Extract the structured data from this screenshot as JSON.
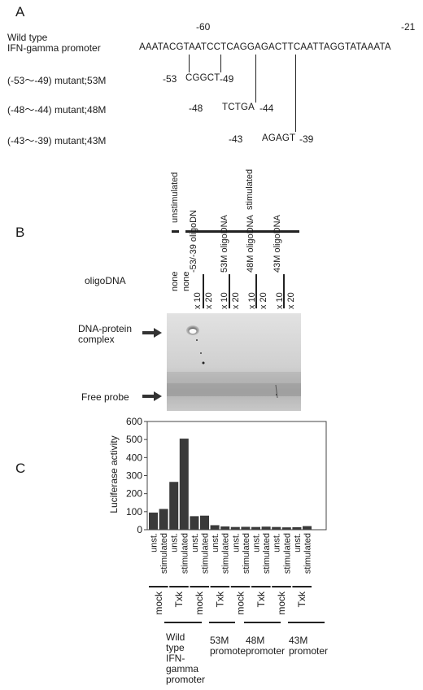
{
  "panelA": {
    "letter": "A",
    "pos_left": "-60",
    "pos_right": "-21",
    "wt_label_line1": "Wild type",
    "wt_label_line2": "IFN-gamma promoter",
    "wt_sequence": "AAATACGTAATCCTCAGGAGACTTCAATTAGGTATAAATA",
    "mutants": [
      {
        "label": "(-53～-49) mutant;53M",
        "start": "-53",
        "seq": "CGGCT",
        "end": "-49"
      },
      {
        "label": "(-48～-44) mutant;48M",
        "start": "-48",
        "seq": "TCTGA",
        "end": "-44"
      },
      {
        "label": "(-43～-39) mutant;43M",
        "start": "-43",
        "seq": "AGAGT",
        "end": "-39"
      }
    ]
  },
  "panelB": {
    "letter": "B",
    "unstimulated": "unstimulated",
    "stimulated": "stimulated",
    "oligo_header": "oligoDNA",
    "lane_none_1": "none",
    "lane_none_2": "none",
    "groups": [
      {
        "name": "-53/-39 oligoDN",
        "x10": "x 10",
        "x20": "x 20"
      },
      {
        "name": "53M oligoDNA",
        "x10": "x 10",
        "x20": "x 20"
      },
      {
        "name": "48M oligoDNA",
        "x10": "x 10",
        "x20": "x 20"
      },
      {
        "name": "43M oligoDNA",
        "x10": "x 10",
        "x20": "x 20"
      }
    ],
    "complex_label_line1": "DNA-protein",
    "complex_label_line2": "complex",
    "free_probe_label": "Free probe"
  },
  "panelC": {
    "letter": "C",
    "promoter_groups": [
      {
        "line1": "Wild",
        "line2": "type",
        "line3": "IFN-",
        "line4": "gamma",
        "line5": "promoter"
      },
      {
        "line1": "53M",
        "line2": "promote"
      },
      {
        "line1": "48M",
        "line2": "promoter"
      },
      {
        "line1": "43M",
        "line2": "promoter"
      }
    ],
    "cell_labels": [
      "mock",
      "Txk",
      "mock",
      "Txk",
      "mock",
      "Txk",
      "mock",
      "Txk"
    ],
    "bar_labels": [
      "unst.",
      "stimulated",
      "unst.",
      "stimulated",
      "unst.",
      "stimulated",
      "unst.",
      "stimulated",
      "unst.",
      "stimulated",
      "unst.",
      "stimulated",
      "unst.",
      "stimulated",
      "unst.",
      "stimulated"
    ]
  },
  "chart_data": {
    "type": "bar",
    "ylabel": "Luciferase activity",
    "ylim": [
      0,
      600
    ],
    "yticks": [
      0,
      100,
      200,
      300,
      400,
      500,
      600
    ],
    "values": [
      95,
      115,
      265,
      505,
      75,
      78,
      25,
      18,
      15,
      16,
      15,
      17,
      15,
      13,
      14,
      20
    ],
    "color": "#3a3a3a"
  }
}
